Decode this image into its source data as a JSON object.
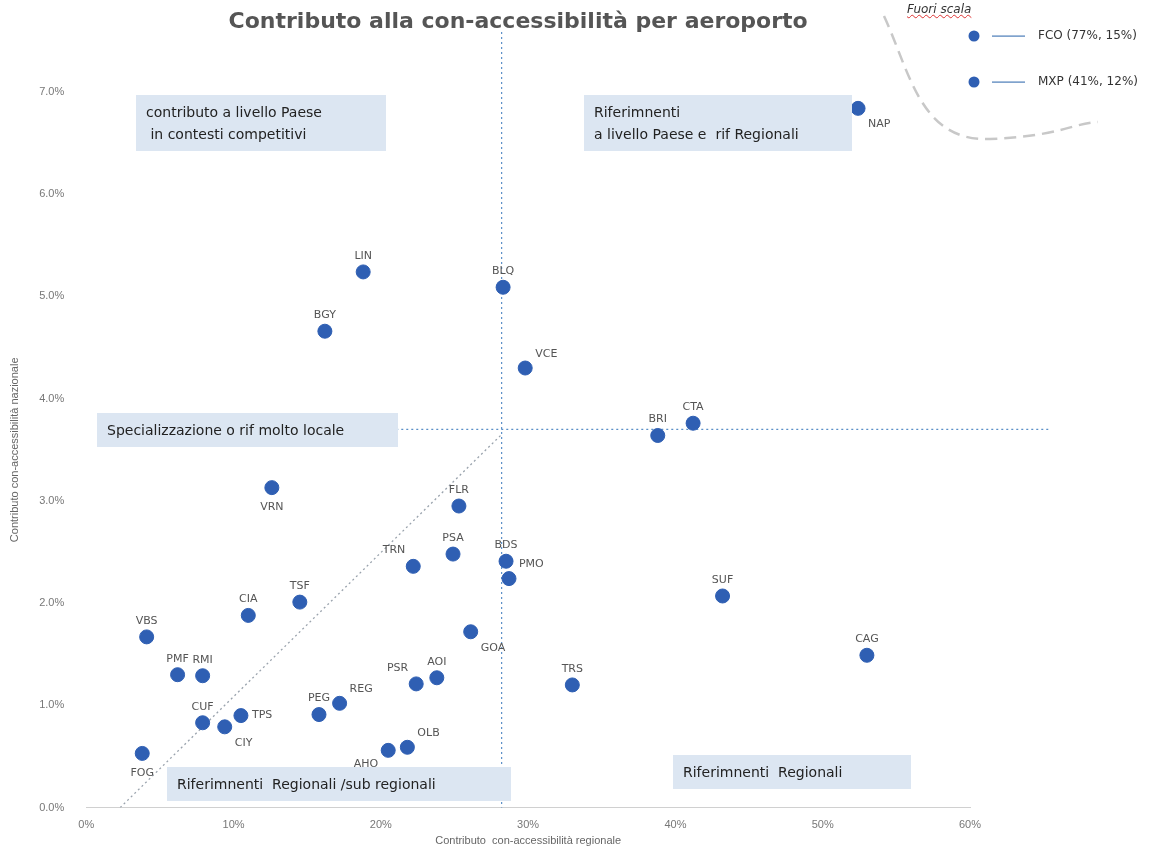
{
  "chart_data": {
    "type": "scatter",
    "title": "Contributo alla con-accessibilità per aeroporto",
    "xlabel": "Contributo  con-accessibilità regionale",
    "ylabel": "Contributo con-accessibilità nazionale",
    "xlim": [
      0,
      60
    ],
    "ylim": [
      0,
      7
    ],
    "xticks": [
      {
        "value": 0,
        "label": "0%"
      },
      {
        "value": 10,
        "label": "10%"
      },
      {
        "value": 20,
        "label": "20%"
      },
      {
        "value": 30,
        "label": "30%"
      },
      {
        "value": 40,
        "label": "40%"
      },
      {
        "value": 50,
        "label": "50%"
      },
      {
        "value": 60,
        "label": "60%"
      }
    ],
    "yticks": [
      {
        "value": 0,
        "label": "0.0%"
      },
      {
        "value": 1,
        "label": "1.0%"
      },
      {
        "value": 2,
        "label": "2.0%"
      },
      {
        "value": 3,
        "label": "3.0%"
      },
      {
        "value": 4,
        "label": "4.0%"
      },
      {
        "value": 5,
        "label": "5.0%"
      },
      {
        "value": 6,
        "label": "6.0%"
      },
      {
        "value": 7,
        "label": "7.0%"
      }
    ],
    "marker": "circle",
    "legend": false,
    "series": [
      {
        "type": "scatter",
        "color": "#2f5fb3",
        "x": [
          52.4,
          18.8,
          28.3,
          16.2,
          29.8,
          41.2,
          38.8,
          12.6,
          25.3,
          24.9,
          28.5,
          22.2,
          28.7,
          43.2,
          14.5,
          11.0,
          26.1,
          4.1,
          53.0,
          6.2,
          7.9,
          23.8,
          22.4,
          33.0,
          17.2,
          15.8,
          10.5,
          7.9,
          9.4,
          21.8,
          20.5,
          3.8
        ],
        "values": [
          6.84,
          5.24,
          5.09,
          4.66,
          4.3,
          3.76,
          3.64,
          3.13,
          2.95,
          2.48,
          2.41,
          2.36,
          2.24,
          2.07,
          2.01,
          1.88,
          1.72,
          1.67,
          1.49,
          1.3,
          1.29,
          1.27,
          1.21,
          1.2,
          1.02,
          0.91,
          0.9,
          0.83,
          0.79,
          0.59,
          0.56,
          0.53
        ],
        "value_labels": [
          "NAP",
          "LIN",
          "BLQ",
          "BGY",
          "VCE",
          "CTA",
          "BRI",
          "VRN",
          "FLR",
          "PSA",
          "BDS",
          "TRN",
          "PMO",
          "SUF",
          "TSF",
          "CIA",
          "GOA",
          "VBS",
          "CAG",
          "PMF",
          "RMI",
          "AOI",
          "PSR",
          "TRS",
          "REG",
          "PEG",
          "TPS",
          "CUF",
          "CIY",
          "OLB",
          "AHO",
          "FOG"
        ]
      },
      {
        "type": "line",
        "color": "#9aa3ad",
        "line_style": "dotted",
        "marker": "none",
        "x": [
          2.3,
          28.2
        ],
        "values": [
          0,
          3.65
        ]
      }
    ],
    "ref_lines": [
      {
        "axis": "x",
        "value": 28.2,
        "color": "#5b8fc7",
        "line_style": "dotted"
      },
      {
        "axis": "y",
        "value": 3.7,
        "color": "#5b8fc7",
        "line_style": "dotted"
      }
    ],
    "annotations": [
      "contributo a livello Paese\n in contesti competitivi",
      "Riferimnenti\na livello Paese e  rif Regionali",
      "Specializzazione o rif molto locale",
      "Riferimnenti  Regionali /sub regionali",
      "Riferimnenti  Regionali",
      "Fuori scala",
      "FCO (77%, 15%)",
      "MXP (41%, 12%)"
    ]
  }
}
